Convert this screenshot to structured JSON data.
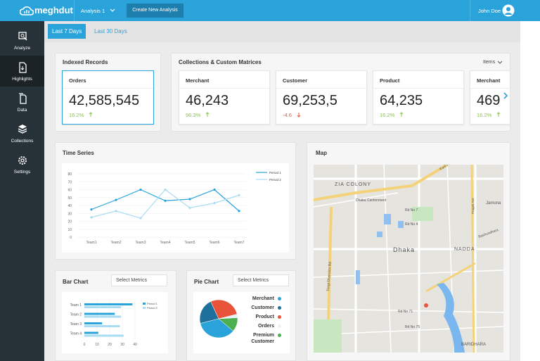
{
  "header": {
    "logo": "meghdut",
    "analysis": "Analysis 1",
    "create_button": "Create New Analysis",
    "user": "John Doe"
  },
  "sidebar": {
    "items": [
      "Analyze",
      "Highlights",
      "Data",
      "Collections",
      "Settings"
    ],
    "active": 1
  },
  "tabs": {
    "items": [
      "Last 7 Days",
      "Last 30 Days"
    ],
    "active": 0
  },
  "indexed_records": {
    "title": "Indexed Records",
    "card": {
      "label": "Orders",
      "value": "42,585,545",
      "change": "16.2%",
      "direction": "up"
    }
  },
  "collections": {
    "title": "Collections & Custom Matrices",
    "menu": "Items",
    "cards": [
      {
        "label": "Merchant",
        "value": "46,243",
        "change": "96.3%",
        "direction": "up"
      },
      {
        "label": "Customer",
        "value": "69,253,5",
        "change": "-4.6",
        "direction": "down"
      },
      {
        "label": "Product",
        "value": "64,235",
        "change": "16.2%",
        "direction": "up"
      },
      {
        "label": "Merchant",
        "value": "469",
        "change": "16.2%",
        "direction": "up"
      }
    ]
  },
  "time_series": {
    "type": "line",
    "title": "Time Series",
    "categories": [
      "Team1",
      "Team2",
      "Team3",
      "Team4",
      "Team5",
      "Team6",
      "Team7"
    ],
    "series": [
      {
        "name": "Period 1",
        "color": "#2aa3da",
        "values": [
          35,
          47,
          60,
          46,
          48,
          60,
          33
        ]
      },
      {
        "name": "Period 2",
        "color": "#a9dcf2",
        "values": [
          25,
          33,
          24,
          60,
          37,
          43,
          53
        ]
      }
    ],
    "ylim": [
      0,
      80
    ],
    "yticks": [
      0,
      10,
      20,
      30,
      40,
      50,
      60,
      70,
      80
    ],
    "grid": true
  },
  "map": {
    "title": "Map",
    "labels": [
      "ZIA COLONY",
      "Tongi Diversion Rd",
      "Dhaka Cantonment",
      "Rd No 7",
      "Rd No 4",
      "Dhaka",
      "NADDA",
      "Jamuna",
      "Bashundhara",
      "Rd No 71",
      "Rd No 75",
      "BARIDHARA",
      "Pragati Ave",
      "Kuril Fl"
    ]
  },
  "bar_chart": {
    "type": "bar",
    "title": "Bar Chart",
    "dropdown": "Select Metrics",
    "categories": [
      "Team 1",
      "Team 2",
      "Team 3",
      "Team 4"
    ],
    "series": [
      {
        "name": "Period 1",
        "color": "#2aa3da",
        "values": [
          38,
          24,
          14,
          11
        ]
      },
      {
        "name": "Period 2",
        "color": "#a9dcf2",
        "values": [
          29,
          29,
          28,
          31
        ]
      }
    ],
    "xlim": [
      0,
      40
    ],
    "xticks": [
      0,
      10,
      20,
      30,
      40
    ],
    "grid": true
  },
  "pie_chart": {
    "type": "pie",
    "title": "Pie Chart",
    "dropdown": "Select Metrics",
    "categories": [
      "Merchant",
      "Customer",
      "Product",
      "Orders",
      "Premium Customer"
    ],
    "values": [
      35,
      22,
      28,
      3,
      12
    ],
    "colors": [
      "#2aa3da",
      "#1d6f9c",
      "#e8533a",
      "#e6f3f9",
      "#4caf50"
    ]
  }
}
